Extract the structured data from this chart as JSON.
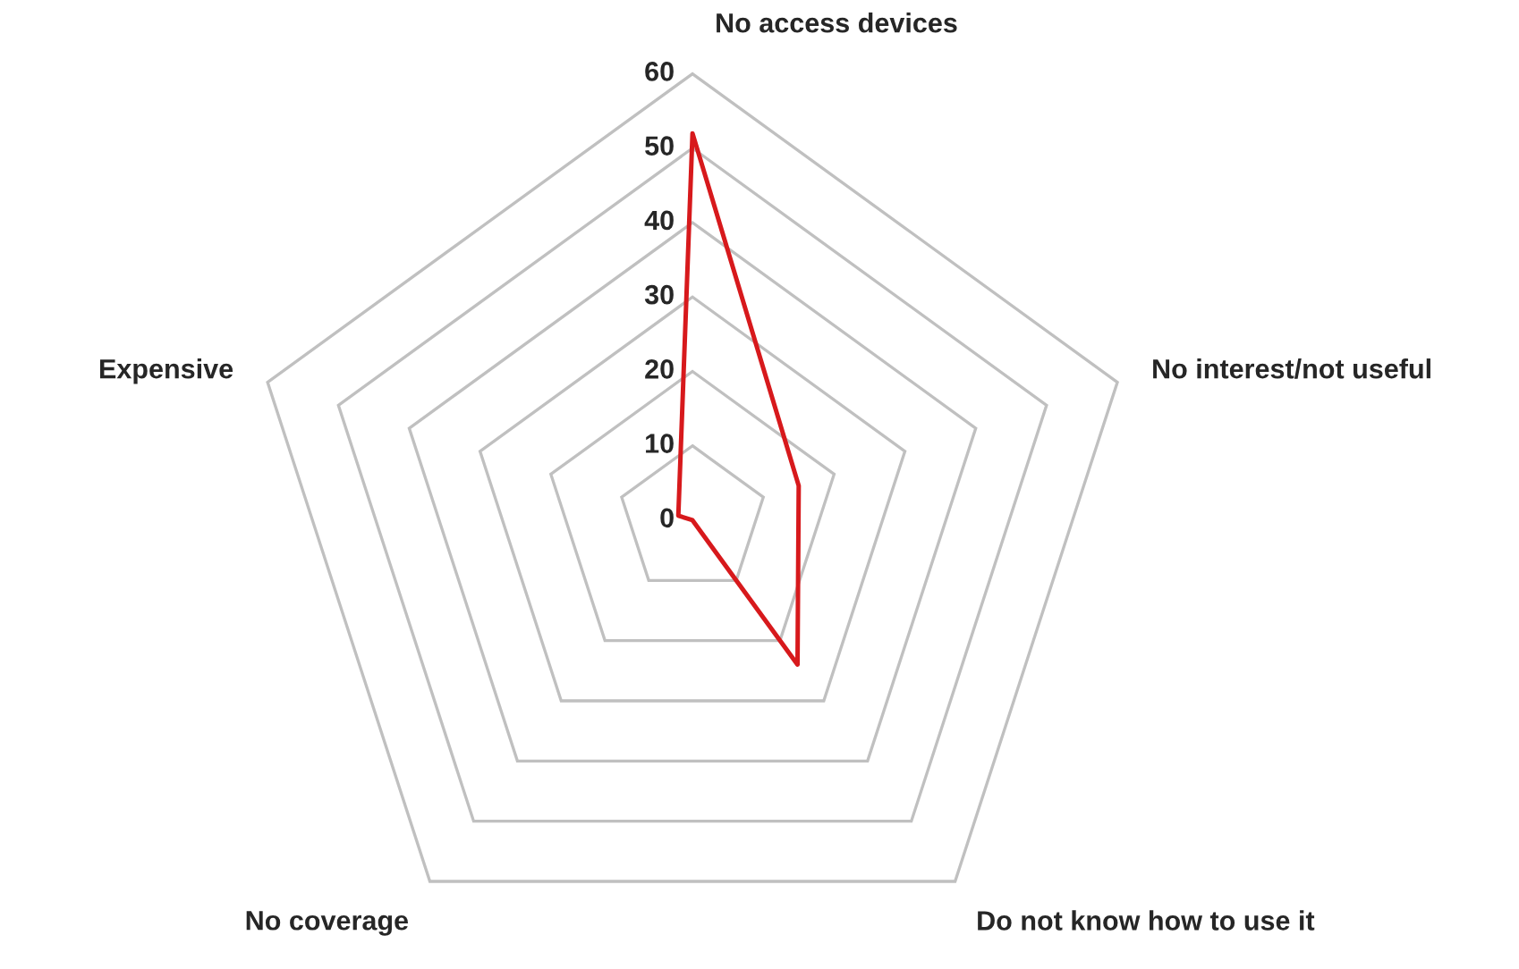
{
  "chart_data": {
    "type": "radar",
    "categories": [
      "No access devices",
      "No interest/not useful",
      "Do not know how to use it",
      "No coverage",
      "Expensive"
    ],
    "series": [
      {
        "color": "#d7191c",
        "values": [
          52,
          15,
          24,
          0,
          2
        ]
      }
    ],
    "ylim": [
      0,
      60
    ],
    "yticks": [
      0,
      10,
      20,
      30,
      40,
      50,
      60
    ],
    "grid": true
  }
}
